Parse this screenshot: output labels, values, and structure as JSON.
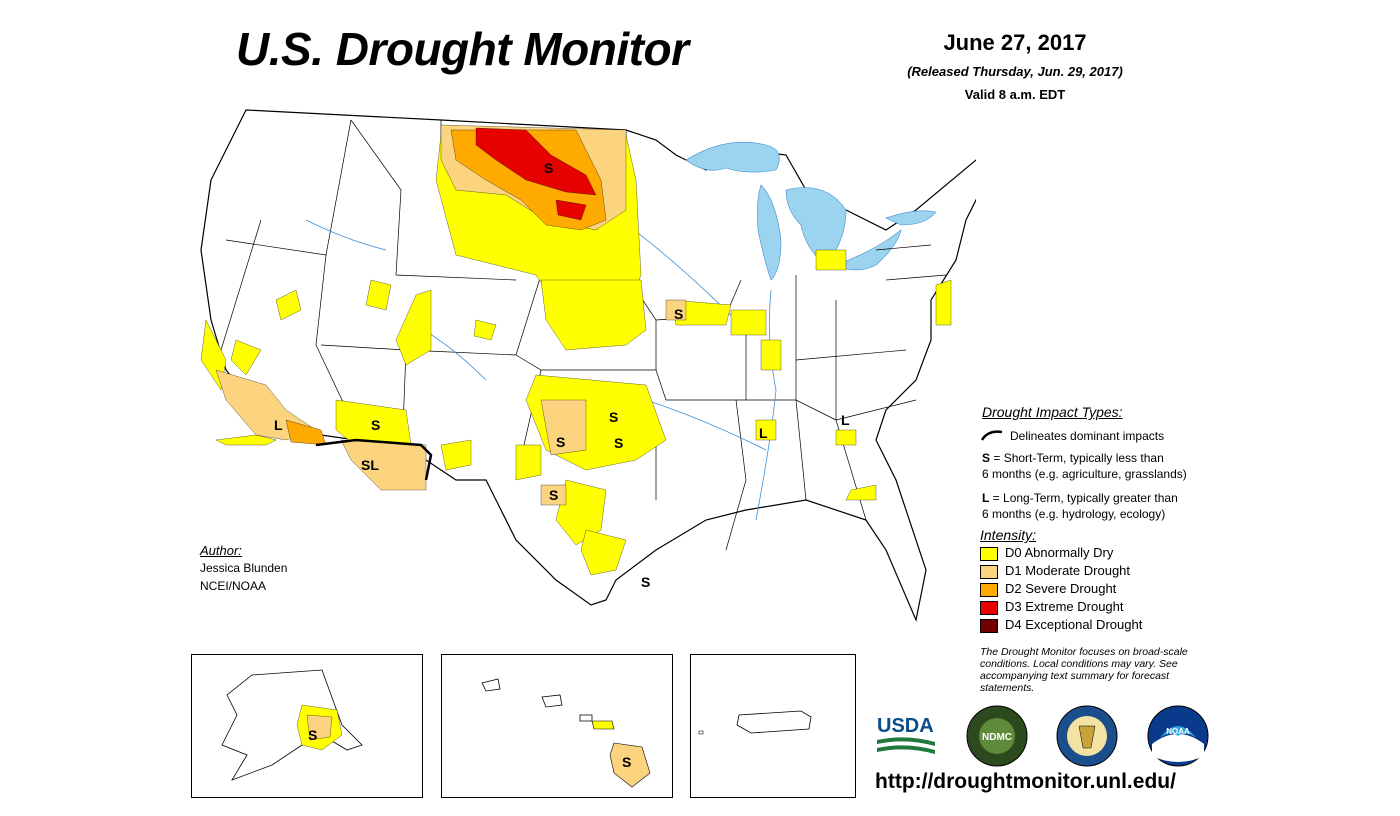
{
  "header": {
    "title": "U.S. Drought Monitor",
    "date": "June 27, 2017",
    "released": "(Released Thursday, Jun. 29, 2017)",
    "valid": "Valid 8 a.m. EDT"
  },
  "impact_types": {
    "heading": "Drought Impact Types:",
    "delineates": "Delineates dominant impacts",
    "short_term_letter": "S",
    "short_term_line1": " = Short-Term, typically less than",
    "short_term_line2": "6 months (e.g. agriculture, grasslands)",
    "long_term_letter": "L",
    "long_term_line1": " = Long-Term, typically greater than",
    "long_term_line2": "6 months (e.g. hydrology, ecology)"
  },
  "intensity": {
    "heading": "Intensity:",
    "levels": [
      {
        "label": "D0 Abnormally Dry",
        "color": "#ffff00"
      },
      {
        "label": "D1 Moderate Drought",
        "color": "#fcd37f"
      },
      {
        "label": "D2 Severe Drought",
        "color": "#ffaa00"
      },
      {
        "label": "D3 Extreme Drought",
        "color": "#e60000"
      },
      {
        "label": "D4 Exceptional Drought",
        "color": "#730000"
      }
    ]
  },
  "author": {
    "heading": "Author:",
    "name": "Jessica Blunden",
    "org": "NCEI/NOAA"
  },
  "note": "The Drought Monitor focuses on broad-scale conditions. Local conditions may vary. See accompanying text summary for forecast statements.",
  "url": "http://droughtmonitor.unl.edu/",
  "map_labels": {
    "s": "S",
    "l": "L",
    "sl": "SL"
  },
  "logos": {
    "usda": "USDA",
    "ndmc": "NDMC",
    "noaa": "NOAA"
  },
  "colors": {
    "water": "#9cd3ee",
    "state_line": "#000000",
    "river": "#3f8fd6"
  }
}
